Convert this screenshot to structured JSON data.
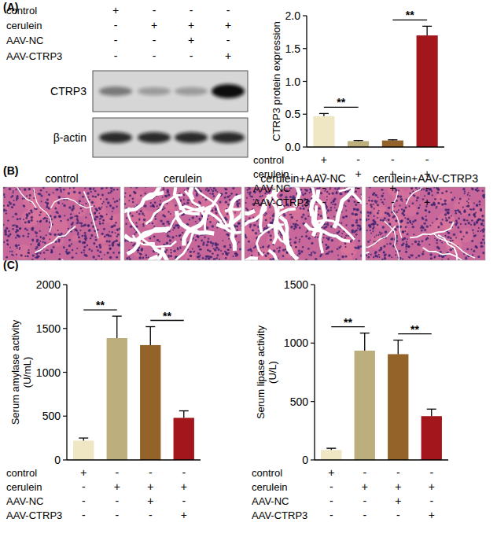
{
  "panels": [
    "(A)",
    "(B)",
    "(C)"
  ],
  "blot": {
    "bands": [
      "CTRP3",
      "β-actin"
    ],
    "treatments": [
      {
        "name": "control",
        "signs": [
          "+",
          "-",
          "-",
          "-"
        ]
      },
      {
        "name": "cerulein",
        "signs": [
          "-",
          "+",
          "+",
          "+"
        ]
      },
      {
        "name": "AAV-NC",
        "signs": [
          "-",
          "-",
          "+",
          "-"
        ]
      },
      {
        "name": "AAV-CTRP3",
        "signs": [
          "-",
          "-",
          "-",
          "+"
        ]
      }
    ]
  },
  "histology": {
    "titles": [
      "control",
      "cerulein",
      "cerulein+AAV-NC",
      "cerulein+AAV-CTRP3"
    ]
  },
  "chart_data": [
    {
      "type": "bar",
      "y_label": "CTRP3 protein expression",
      "categories": [
        null,
        null,
        null,
        null
      ],
      "values": [
        0.47,
        0.09,
        0.1,
        1.7
      ],
      "errors": [
        0.04,
        0.01,
        0.01,
        0.14
      ],
      "colors": [
        "#efe6c4",
        "#bdae7e",
        "#93632a",
        "#a3161c"
      ],
      "ylim": [
        0,
        2
      ],
      "yticks": [
        {
          "value": 0,
          "label": "0.0"
        },
        0.5,
        {
          "value": 1,
          "label": "1.0"
        },
        1.5,
        {
          "value": 2,
          "label": "2.0"
        }
      ],
      "significance": [
        {
          "label": "**",
          "pair": [
            0,
            1
          ]
        },
        {
          "label": "**",
          "pair": [
            2,
            3
          ]
        }
      ],
      "treatments": [
        {
          "name": "control",
          "signs": [
            "+",
            "-",
            "-",
            "-"
          ]
        },
        {
          "name": "cerulein",
          "signs": [
            "-",
            "+",
            "+",
            "+"
          ]
        },
        {
          "name": "AAV-NC",
          "signs": [
            "-",
            "-",
            "+",
            "-"
          ]
        },
        {
          "name": "AAV-CTRP3",
          "signs": [
            "-",
            "-",
            "-",
            "+"
          ]
        }
      ]
    },
    {
      "type": "bar",
      "y_label": "Serum amylase activity (U/mL)",
      "categories": [
        null,
        null,
        null,
        null
      ],
      "values": [
        220,
        1390,
        1310,
        480
      ],
      "errors": [
        30,
        250,
        210,
        80
      ],
      "colors": [
        "#efe6c4",
        "#bdae7e",
        "#93632a",
        "#a3161c"
      ],
      "ylim": [
        0,
        2000
      ],
      "yticks": [
        0,
        500,
        1000,
        1500,
        2000
      ],
      "significance": [
        {
          "label": "**",
          "pair": [
            0,
            1
          ]
        },
        {
          "label": "**",
          "pair": [
            2,
            3
          ]
        }
      ],
      "treatments": [
        {
          "name": "control",
          "signs": [
            "+",
            "-",
            "-",
            "-"
          ]
        },
        {
          "name": "cerulein",
          "signs": [
            "-",
            "+",
            "+",
            "+"
          ]
        },
        {
          "name": "AAV-NC",
          "signs": [
            "-",
            "-",
            "+",
            "-"
          ]
        },
        {
          "name": "AAV-CTRP3",
          "signs": [
            "-",
            "-",
            "-",
            "+"
          ]
        }
      ]
    },
    {
      "type": "bar",
      "y_label": "Serum lipase activity (U/L)",
      "categories": [
        null,
        null,
        null,
        null
      ],
      "values": [
        85,
        935,
        905,
        375
      ],
      "errors": [
        15,
        150,
        120,
        60
      ],
      "colors": [
        "#efe6c4",
        "#bdae7e",
        "#93632a",
        "#a3161c"
      ],
      "ylim": [
        0,
        1500
      ],
      "yticks": [
        0,
        500,
        1000,
        1500
      ],
      "significance": [
        {
          "label": "**",
          "pair": [
            0,
            1
          ]
        },
        {
          "label": "**",
          "pair": [
            2,
            3
          ]
        }
      ],
      "treatments": [
        {
          "name": "control",
          "signs": [
            "+",
            "-",
            "-",
            "-"
          ]
        },
        {
          "name": "cerulein",
          "signs": [
            "-",
            "+",
            "+",
            "+"
          ]
        },
        {
          "name": "AAV-NC",
          "signs": [
            "-",
            "-",
            "+",
            "-"
          ]
        },
        {
          "name": "AAV-CTRP3",
          "signs": [
            "-",
            "-",
            "-",
            "+"
          ]
        }
      ]
    }
  ]
}
